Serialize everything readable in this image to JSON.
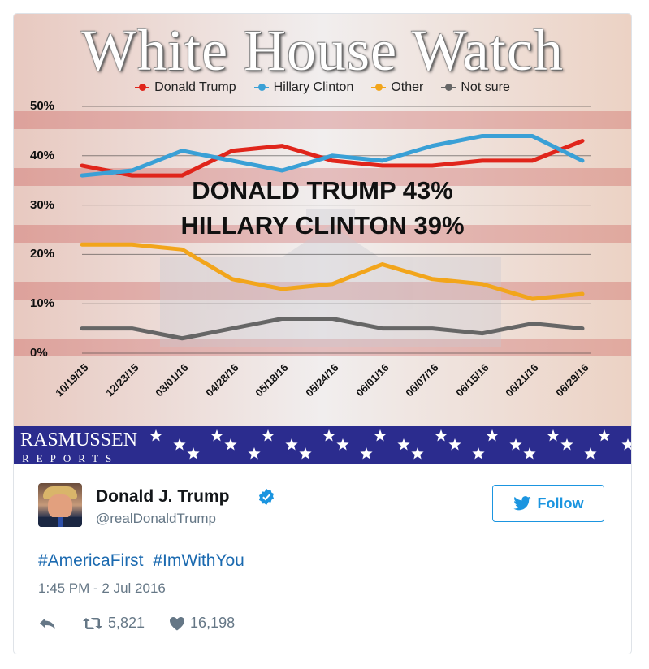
{
  "chart": {
    "title": "White House Watch",
    "headline_1": "DONALD TRUMP 43%",
    "headline_2": "HILLARY CLINTON 39%",
    "brand_name": "RASMUSSEN",
    "brand_sub": "REPORTS"
  },
  "chart_data": {
    "type": "line",
    "title": "White House Watch",
    "categories": [
      "10/19/15",
      "12/23/15",
      "03/01/16",
      "04/28/16",
      "05/18/16",
      "05/24/16",
      "06/01/16",
      "06/07/16",
      "06/15/16",
      "06/21/16",
      "06/29/16"
    ],
    "series": [
      {
        "name": "Donald Trump",
        "color": "#e0251b",
        "values": [
          38,
          36,
          36,
          41,
          42,
          39,
          38,
          38,
          39,
          39,
          43
        ]
      },
      {
        "name": "Hillary Clinton",
        "color": "#3aa0d6",
        "values": [
          36,
          37,
          41,
          39,
          37,
          40,
          39,
          42,
          44,
          44,
          39
        ]
      },
      {
        "name": "Other",
        "color": "#f2a51b",
        "values": [
          22,
          22,
          21,
          15,
          13,
          14,
          18,
          15,
          14,
          11,
          12
        ]
      },
      {
        "name": "Not sure",
        "color": "#666666",
        "values": [
          5,
          5,
          3,
          5,
          7,
          7,
          5,
          5,
          4,
          6,
          5
        ]
      }
    ],
    "yticks": [
      "0%",
      "10%",
      "20%",
      "30%",
      "40%",
      "50%"
    ],
    "ylim": [
      0,
      50
    ],
    "legend": "top",
    "grid": true
  },
  "tweet": {
    "display_name": "Donald J. Trump",
    "handle": "@realDonaldTrump",
    "follow_label": "Follow",
    "hashtags": [
      "#AmericaFirst",
      "#ImWithYou"
    ],
    "timestamp": "1:45 PM - 2 Jul 2016",
    "retweets": "5,821",
    "likes": "16,198",
    "accent": "#1b95e0"
  }
}
